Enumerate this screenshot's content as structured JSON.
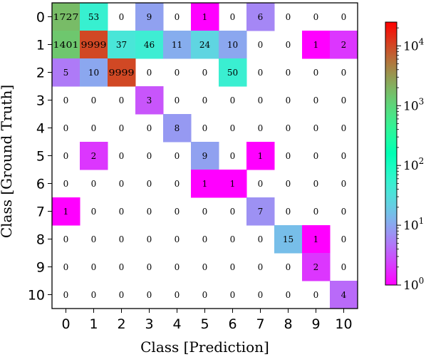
{
  "chart_data": {
    "type": "heatmap",
    "title": "",
    "xlabel": "Class [Prediction]",
    "ylabel": "Class [Ground Truth]",
    "x_ticks": [
      "0",
      "1",
      "2",
      "3",
      "4",
      "5",
      "6",
      "7",
      "8",
      "9",
      "10"
    ],
    "y_ticks": [
      "0",
      "1",
      "2",
      "3",
      "4",
      "5",
      "6",
      "7",
      "8",
      "9",
      "10"
    ],
    "matrix": [
      [
        1727,
        53,
        0,
        9,
        0,
        1,
        0,
        6,
        0,
        0,
        0
      ],
      [
        1401,
        9999,
        37,
        46,
        11,
        24,
        10,
        0,
        0,
        1,
        2
      ],
      [
        5,
        10,
        9999,
        0,
        0,
        0,
        50,
        0,
        0,
        0,
        0
      ],
      [
        0,
        0,
        0,
        3,
        0,
        0,
        0,
        0,
        0,
        0,
        0
      ],
      [
        0,
        0,
        0,
        0,
        8,
        0,
        0,
        0,
        0,
        0,
        0
      ],
      [
        0,
        2,
        0,
        0,
        0,
        9,
        0,
        1,
        0,
        0,
        0
      ],
      [
        0,
        0,
        0,
        0,
        0,
        1,
        1,
        0,
        0,
        0,
        0
      ],
      [
        1,
        0,
        0,
        0,
        0,
        0,
        0,
        7,
        0,
        0,
        0
      ],
      [
        0,
        0,
        0,
        0,
        0,
        0,
        0,
        0,
        15,
        1,
        0
      ],
      [
        0,
        0,
        0,
        0,
        0,
        0,
        0,
        0,
        0,
        2,
        0
      ],
      [
        0,
        0,
        0,
        0,
        0,
        0,
        0,
        0,
        0,
        0,
        4
      ]
    ],
    "color_scale": "log",
    "colormap": "rainbow",
    "vmin": 1,
    "vmax": 25000,
    "colorbar_ticks": [
      {
        "value": 1,
        "label": "10^0"
      },
      {
        "value": 10,
        "label": "10^1"
      },
      {
        "value": 100,
        "label": "10^2"
      },
      {
        "value": 1000,
        "label": "10^3"
      },
      {
        "value": 10000,
        "label": "10^4"
      }
    ],
    "grid": false
  }
}
